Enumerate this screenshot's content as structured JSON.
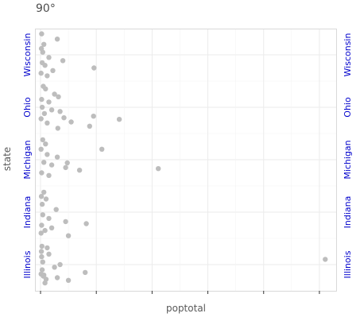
{
  "chart_data": {
    "type": "scatter",
    "title": "90°",
    "xlabel": "poptotal",
    "ylabel": "state",
    "categories": [
      "Illinois",
      "Indiana",
      "Michigan",
      "Ohio",
      "Wisconsin"
    ],
    "y_tick_labels": [
      "Illinois",
      "Indiana",
      "Michigan",
      "Ohio",
      "Wisconsin"
    ],
    "x_tick_labels": [],
    "xlim": [
      -100000,
      5300000
    ],
    "x_gridlines": [
      0,
      1000000,
      2000000,
      3000000,
      4000000,
      5000000
    ],
    "x_minor_gridlines": [
      500000,
      1500000,
      2500000,
      3500000,
      4500000
    ],
    "grid": true,
    "point_color": "#bdbdbd",
    "tick_label_color": "#0000cc",
    "axis_label_color": "#595959",
    "series": [
      {
        "values": [
          {
            "state": "Illinois",
            "poptotal": 5105067,
            "jitter": -0.1
          },
          {
            "state": "Illinois",
            "poptotal": 500000,
            "jitter": 0.3
          },
          {
            "state": "Illinois",
            "poptotal": 800000,
            "jitter": 0.15
          },
          {
            "state": "Illinois",
            "poptotal": 350000,
            "jitter": 0.0
          },
          {
            "state": "Illinois",
            "poptotal": 300000,
            "jitter": 0.25
          },
          {
            "state": "Illinois",
            "poptotal": 250000,
            "jitter": 0.05
          },
          {
            "state": "Illinois",
            "poptotal": 150000,
            "jitter": -0.2
          },
          {
            "state": "Illinois",
            "poptotal": 120000,
            "jitter": -0.32
          },
          {
            "state": "Illinois",
            "poptotal": 100000,
            "jitter": 0.28
          },
          {
            "state": "Illinois",
            "poptotal": 80000,
            "jitter": 0.35
          },
          {
            "state": "Illinois",
            "poptotal": 60000,
            "jitter": 0.2
          },
          {
            "state": "Illinois",
            "poptotal": 40000,
            "jitter": -0.05
          },
          {
            "state": "Illinois",
            "poptotal": 30000,
            "jitter": 0.1
          },
          {
            "state": "Illinois",
            "poptotal": 20000,
            "jitter": -0.15
          },
          {
            "state": "Illinois",
            "poptotal": 15000,
            "jitter": -0.25
          },
          {
            "state": "Illinois",
            "poptotal": 10000,
            "jitter": 0.18
          },
          {
            "state": "Illinois",
            "poptotal": 25000,
            "jitter": -0.35
          },
          {
            "state": "Illinois",
            "poptotal": 50000,
            "jitter": 0.22
          },
          {
            "state": "Indiana",
            "poptotal": 820000,
            "jitter": 0.22
          },
          {
            "state": "Indiana",
            "poptotal": 500000,
            "jitter": 0.45
          },
          {
            "state": "Indiana",
            "poptotal": 450000,
            "jitter": 0.18
          },
          {
            "state": "Indiana",
            "poptotal": 280000,
            "jitter": -0.05
          },
          {
            "state": "Indiana",
            "poptotal": 200000,
            "jitter": 0.3
          },
          {
            "state": "Indiana",
            "poptotal": 150000,
            "jitter": 0.12
          },
          {
            "state": "Indiana",
            "poptotal": 100000,
            "jitter": -0.25
          },
          {
            "state": "Indiana",
            "poptotal": 80000,
            "jitter": 0.35
          },
          {
            "state": "Indiana",
            "poptotal": 60000,
            "jitter": -0.38
          },
          {
            "state": "Indiana",
            "poptotal": 40000,
            "jitter": 0.05
          },
          {
            "state": "Indiana",
            "poptotal": 30000,
            "jitter": -0.15
          },
          {
            "state": "Indiana",
            "poptotal": 20000,
            "jitter": 0.25
          },
          {
            "state": "Indiana",
            "poptotal": 15000,
            "jitter": -0.3
          },
          {
            "state": "Indiana",
            "poptotal": 10000,
            "jitter": 0.4
          },
          {
            "state": "Michigan",
            "poptotal": 2111687,
            "jitter": 0.17
          },
          {
            "state": "Michigan",
            "poptotal": 1100000,
            "jitter": -0.2
          },
          {
            "state": "Michigan",
            "poptotal": 700000,
            "jitter": 0.2
          },
          {
            "state": "Michigan",
            "poptotal": 480000,
            "jitter": 0.06
          },
          {
            "state": "Michigan",
            "poptotal": 450000,
            "jitter": 0.15
          },
          {
            "state": "Michigan",
            "poptotal": 300000,
            "jitter": -0.05
          },
          {
            "state": "Michigan",
            "poptotal": 200000,
            "jitter": 0.1
          },
          {
            "state": "Michigan",
            "poptotal": 150000,
            "jitter": 0.3
          },
          {
            "state": "Michigan",
            "poptotal": 120000,
            "jitter": -0.1
          },
          {
            "state": "Michigan",
            "poptotal": 90000,
            "jitter": -0.3
          },
          {
            "state": "Michigan",
            "poptotal": 60000,
            "jitter": 0.05
          },
          {
            "state": "Michigan",
            "poptotal": 40000,
            "jitter": -0.38
          },
          {
            "state": "Michigan",
            "poptotal": 20000,
            "jitter": 0.25
          },
          {
            "state": "Michigan",
            "poptotal": 10000,
            "jitter": -0.2
          },
          {
            "state": "Ohio",
            "poptotal": 1412140,
            "jitter": 0.23
          },
          {
            "state": "Ohio",
            "poptotal": 950000,
            "jitter": 0.17
          },
          {
            "state": "Ohio",
            "poptotal": 880000,
            "jitter": 0.36
          },
          {
            "state": "Ohio",
            "poptotal": 550000,
            "jitter": 0.28
          },
          {
            "state": "Ohio",
            "poptotal": 420000,
            "jitter": 0.2
          },
          {
            "state": "Ohio",
            "poptotal": 350000,
            "jitter": 0.08
          },
          {
            "state": "Ohio",
            "poptotal": 320000,
            "jitter": -0.2
          },
          {
            "state": "Ohio",
            "poptotal": 310000,
            "jitter": 0.4
          },
          {
            "state": "Ohio",
            "poptotal": 250000,
            "jitter": -0.25
          },
          {
            "state": "Ohio",
            "poptotal": 200000,
            "jitter": 0.05
          },
          {
            "state": "Ohio",
            "poptotal": 150000,
            "jitter": -0.1
          },
          {
            "state": "Ohio",
            "poptotal": 120000,
            "jitter": 0.3
          },
          {
            "state": "Ohio",
            "poptotal": 90000,
            "jitter": -0.35
          },
          {
            "state": "Ohio",
            "poptotal": 70000,
            "jitter": 0.12
          },
          {
            "state": "Ohio",
            "poptotal": 50000,
            "jitter": -0.4
          },
          {
            "state": "Ohio",
            "poptotal": 30000,
            "jitter": 0.0
          },
          {
            "state": "Ohio",
            "poptotal": 20000,
            "jitter": -0.15
          },
          {
            "state": "Ohio",
            "poptotal": 10000,
            "jitter": 0.22
          },
          {
            "state": "Wisconsin",
            "poptotal": 959275,
            "jitter": 0.25
          },
          {
            "state": "Wisconsin",
            "poptotal": 400000,
            "jitter": 0.11
          },
          {
            "state": "Wisconsin",
            "poptotal": 300000,
            "jitter": -0.3
          },
          {
            "state": "Wisconsin",
            "poptotal": 220000,
            "jitter": 0.3
          },
          {
            "state": "Wisconsin",
            "poptotal": 150000,
            "jitter": 0.05
          },
          {
            "state": "Wisconsin",
            "poptotal": 120000,
            "jitter": 0.4
          },
          {
            "state": "Wisconsin",
            "poptotal": 80000,
            "jitter": 0.2
          },
          {
            "state": "Wisconsin",
            "poptotal": 60000,
            "jitter": -0.2
          },
          {
            "state": "Wisconsin",
            "poptotal": 40000,
            "jitter": -0.05
          },
          {
            "state": "Wisconsin",
            "poptotal": 30000,
            "jitter": 0.15
          },
          {
            "state": "Wisconsin",
            "poptotal": 20000,
            "jitter": -0.4
          },
          {
            "state": "Wisconsin",
            "poptotal": 10000,
            "jitter": 0.35
          },
          {
            "state": "Wisconsin",
            "poptotal": 15000,
            "jitter": -0.12
          }
        ]
      }
    ]
  }
}
